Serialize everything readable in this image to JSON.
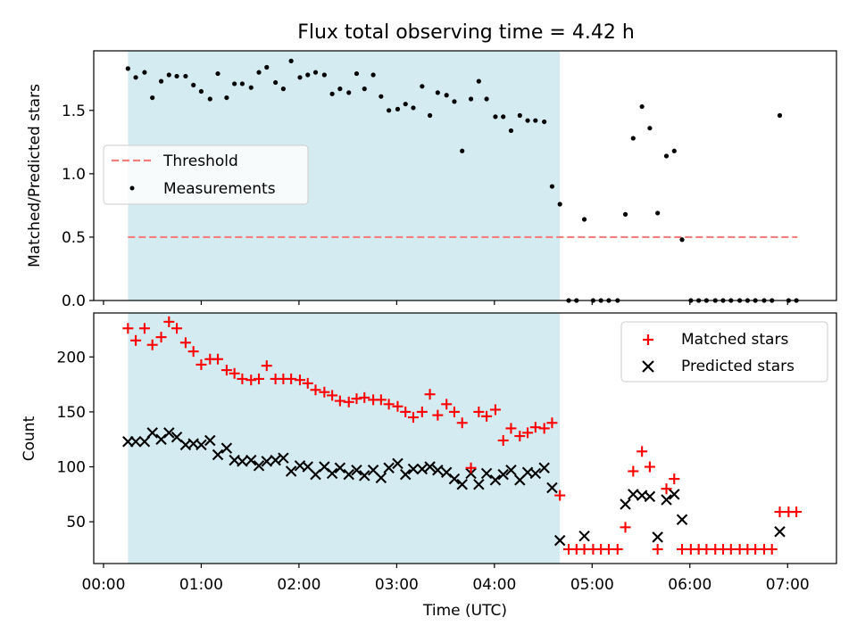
{
  "title": "Flux total observing time = 4.42 h",
  "chart_data": [
    {
      "type": "scatter",
      "panel": "top",
      "ylabel": "Matched/Predicted stars",
      "xlim": [
        -0.1,
        7.5
      ],
      "ylim": [
        0,
        1.97
      ],
      "yticks": [
        0.0,
        0.5,
        1.0,
        1.5
      ],
      "yticklabels": [
        "0.0",
        "0.5",
        "1.0",
        "1.5"
      ],
      "shaded_interval": [
        0.25,
        4.67
      ],
      "shade_color": "#d4ebf1",
      "legend": {
        "placement": "center-left",
        "entries": [
          "Threshold",
          "Measurements"
        ]
      },
      "threshold": {
        "name": "Threshold",
        "x": [
          0.25,
          7.1
        ],
        "y": 0.5,
        "color": "#f47e7e",
        "style": "dashed"
      },
      "series": [
        {
          "name": "Measurements",
          "marker": "dot",
          "color": "#000000",
          "x": [
            0.25,
            0.33,
            0.42,
            0.5,
            0.59,
            0.67,
            0.75,
            0.84,
            0.92,
            1.0,
            1.09,
            1.17,
            1.26,
            1.34,
            1.42,
            1.51,
            1.59,
            1.67,
            1.76,
            1.84,
            1.92,
            2.01,
            2.09,
            2.17,
            2.26,
            2.34,
            2.42,
            2.51,
            2.59,
            2.67,
            2.76,
            2.84,
            2.92,
            3.01,
            3.09,
            3.17,
            3.26,
            3.34,
            3.42,
            3.51,
            3.59,
            3.67,
            3.76,
            3.84,
            3.92,
            4.01,
            4.09,
            4.17,
            4.26,
            4.34,
            4.42,
            4.51,
            4.59,
            4.67,
            4.76,
            4.84,
            4.92,
            5.01,
            5.09,
            5.17,
            5.26,
            5.34,
            5.42,
            5.51,
            5.59,
            5.67,
            5.76,
            5.84,
            5.92,
            6.01,
            6.09,
            6.17,
            6.26,
            6.34,
            6.42,
            6.51,
            6.59,
            6.67,
            6.76,
            6.84,
            6.92,
            7.01,
            7.09
          ],
          "y": [
            1.83,
            1.76,
            1.8,
            1.6,
            1.73,
            1.78,
            1.77,
            1.77,
            1.7,
            1.65,
            1.59,
            1.79,
            1.6,
            1.71,
            1.71,
            1.68,
            1.8,
            1.84,
            1.72,
            1.67,
            1.89,
            1.76,
            1.78,
            1.8,
            1.78,
            1.63,
            1.67,
            1.64,
            1.79,
            1.67,
            1.78,
            1.61,
            1.5,
            1.51,
            1.55,
            1.52,
            1.69,
            1.46,
            1.64,
            1.62,
            1.57,
            1.18,
            1.59,
            1.73,
            1.59,
            1.45,
            1.45,
            1.34,
            1.46,
            1.42,
            1.42,
            1.41,
            0.9,
            0.76,
            0,
            0,
            0.64,
            0,
            0,
            0,
            0,
            0.68,
            1.28,
            1.53,
            1.36,
            0.69,
            1.14,
            1.18,
            0.48,
            0,
            0,
            0,
            0,
            0,
            0,
            0,
            0,
            0,
            0,
            0,
            1.46,
            0,
            0
          ]
        }
      ]
    },
    {
      "type": "scatter",
      "panel": "bottom",
      "xlabel": "Time (UTC)",
      "ylabel": "Count",
      "xlim": [
        -0.1,
        7.5
      ],
      "ylim": [
        12,
        240
      ],
      "yticks": [
        50,
        100,
        150,
        200
      ],
      "yticklabels": [
        "50",
        "100",
        "150",
        "200"
      ],
      "xticks": [
        0,
        1,
        2,
        3,
        4,
        5,
        6,
        7
      ],
      "xticklabels": [
        "00:00",
        "01:00",
        "02:00",
        "03:00",
        "04:00",
        "05:00",
        "06:00",
        "07:00"
      ],
      "shaded_interval": [
        0.25,
        4.67
      ],
      "shade_color": "#d4ebf1",
      "legend": {
        "placement": "top-right",
        "entries": [
          "Matched stars",
          "Predicted stars"
        ]
      },
      "series": [
        {
          "name": "Matched stars",
          "marker": "plus",
          "color": "#ff0000",
          "x": [
            0.25,
            0.33,
            0.42,
            0.5,
            0.59,
            0.67,
            0.75,
            0.84,
            0.92,
            1.0,
            1.09,
            1.17,
            1.26,
            1.34,
            1.42,
            1.51,
            1.59,
            1.67,
            1.76,
            1.84,
            1.92,
            2.01,
            2.09,
            2.17,
            2.26,
            2.34,
            2.42,
            2.51,
            2.59,
            2.67,
            2.76,
            2.84,
            2.92,
            3.01,
            3.09,
            3.17,
            3.26,
            3.34,
            3.42,
            3.51,
            3.59,
            3.67,
            3.76,
            3.84,
            3.92,
            4.01,
            4.09,
            4.17,
            4.26,
            4.34,
            4.42,
            4.51,
            4.59,
            4.67,
            4.76,
            4.84,
            4.92,
            5.01,
            5.09,
            5.17,
            5.26,
            5.34,
            5.42,
            5.51,
            5.59,
            5.67,
            5.76,
            5.84,
            5.92,
            6.01,
            6.09,
            6.17,
            6.26,
            6.34,
            6.42,
            6.51,
            6.59,
            6.67,
            6.76,
            6.84,
            6.92,
            7.01,
            7.09
          ],
          "y": [
            226,
            215,
            226,
            211,
            218,
            232,
            226,
            213,
            205,
            193,
            198,
            198,
            188,
            185,
            180,
            179,
            180,
            192,
            180,
            180,
            180,
            179,
            176,
            170,
            168,
            165,
            160,
            159,
            162,
            163,
            161,
            161,
            157,
            155,
            150,
            145,
            150,
            166,
            147,
            157,
            150,
            140,
            99,
            150,
            146,
            152,
            124,
            135,
            128,
            131,
            136,
            135,
            140,
            74,
            25,
            25,
            25,
            25,
            25,
            25,
            25,
            45,
            96,
            114,
            100,
            25,
            80,
            89,
            25,
            25,
            25,
            25,
            25,
            25,
            25,
            25,
            25,
            25,
            25,
            25,
            59,
            59,
            59
          ]
        },
        {
          "name": "Predicted stars",
          "marker": "x",
          "color": "#000000",
          "x": [
            0.25,
            0.33,
            0.42,
            0.5,
            0.59,
            0.67,
            0.75,
            0.84,
            0.92,
            1.0,
            1.09,
            1.17,
            1.26,
            1.34,
            1.42,
            1.51,
            1.59,
            1.67,
            1.76,
            1.84,
            1.92,
            2.01,
            2.09,
            2.17,
            2.26,
            2.34,
            2.42,
            2.51,
            2.59,
            2.67,
            2.76,
            2.84,
            2.92,
            3.01,
            3.09,
            3.17,
            3.26,
            3.34,
            3.42,
            3.51,
            3.59,
            3.67,
            3.76,
            3.84,
            3.92,
            4.01,
            4.09,
            4.17,
            4.26,
            4.34,
            4.42,
            4.51,
            4.59,
            4.67,
            4.92,
            5.34,
            5.42,
            5.51,
            5.59,
            5.67,
            5.76,
            5.84,
            5.92,
            6.92
          ],
          "y": [
            123,
            123,
            123,
            131,
            125,
            131,
            127,
            120,
            121,
            120,
            124,
            111,
            117,
            106,
            105,
            106,
            101,
            105,
            106,
            108,
            96,
            101,
            100,
            93,
            100,
            94,
            99,
            93,
            97,
            92,
            97,
            90,
            99,
            103,
            93,
            98,
            98,
            100,
            97,
            95,
            89,
            84,
            94,
            84,
            94,
            88,
            93,
            97,
            88,
            95,
            94,
            99,
            81,
            33,
            37,
            66,
            75,
            74,
            73,
            36,
            70,
            75,
            52,
            41
          ]
        }
      ]
    }
  ]
}
